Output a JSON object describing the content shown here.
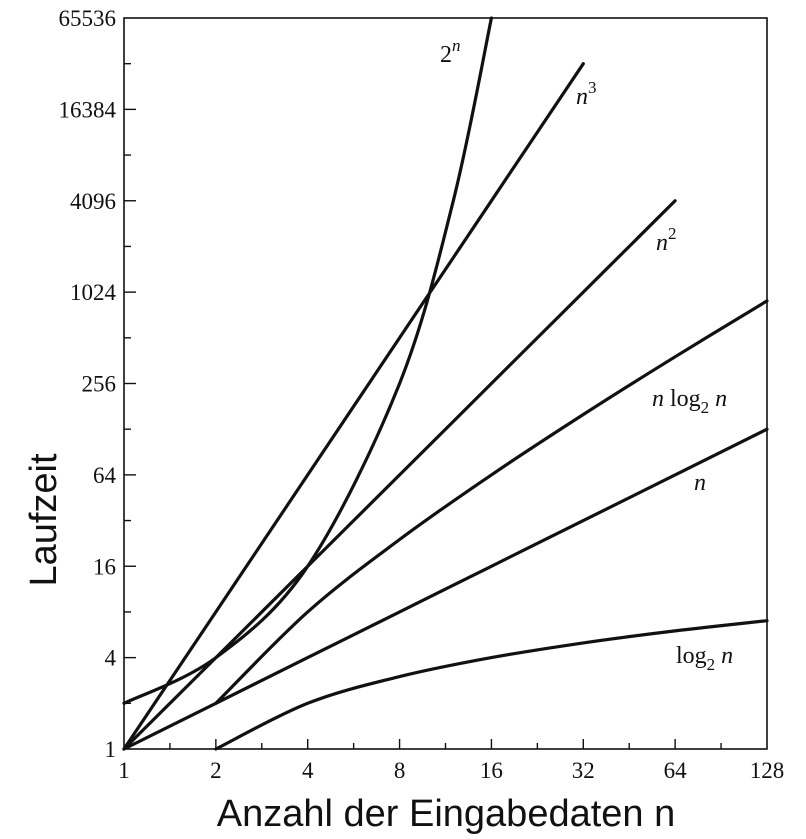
{
  "chart_data": {
    "type": "line",
    "xlabel": "Anzahl der Eingabedaten n",
    "ylabel": "Laufzeit",
    "x_scale": "log2",
    "y_scale": "log2",
    "xlim": [
      1,
      128
    ],
    "ylim": [
      1,
      65536
    ],
    "x_ticks": [
      "1",
      "2",
      "4",
      "8",
      "16",
      "32",
      "64",
      "128"
    ],
    "y_ticks": [
      "1",
      "4",
      "16",
      "64",
      "256",
      "1024",
      "4096",
      "16384",
      "65536"
    ],
    "grid": false,
    "series": [
      {
        "name": "2^n",
        "label_base": "2",
        "label_sup": "n",
        "x": [
          1,
          2,
          4,
          8,
          12,
          16
        ],
        "y": [
          2,
          4,
          16,
          256,
          4096,
          65536
        ]
      },
      {
        "name": "n^3",
        "label_base": "n",
        "label_sup": "3",
        "x": [
          1,
          2,
          4,
          8,
          16,
          32
        ],
        "y": [
          1,
          8,
          64,
          512,
          4096,
          32768
        ]
      },
      {
        "name": "n^2",
        "label_base": "n",
        "label_sup": "2",
        "x": [
          1,
          2,
          4,
          8,
          16,
          32,
          64
        ],
        "y": [
          1,
          4,
          16,
          64,
          256,
          1024,
          4096
        ]
      },
      {
        "name": "n log2 n",
        "label_pre": "n log",
        "label_sub": "2",
        "label_post": " n",
        "x": [
          2,
          4,
          8,
          16,
          32,
          64,
          128
        ],
        "y": [
          2,
          8,
          24,
          64,
          160,
          384,
          896
        ]
      },
      {
        "name": "n",
        "label_base": "n",
        "x": [
          1,
          2,
          4,
          8,
          16,
          32,
          64,
          128
        ],
        "y": [
          1,
          2,
          4,
          8,
          16,
          32,
          64,
          128
        ]
      },
      {
        "name": "log2 n",
        "label_pre": "log",
        "label_sub": "2",
        "label_post": " n",
        "x": [
          2,
          4,
          8,
          16,
          32,
          64,
          128
        ],
        "y": [
          1,
          2,
          3,
          4,
          5,
          6,
          7
        ]
      }
    ]
  }
}
